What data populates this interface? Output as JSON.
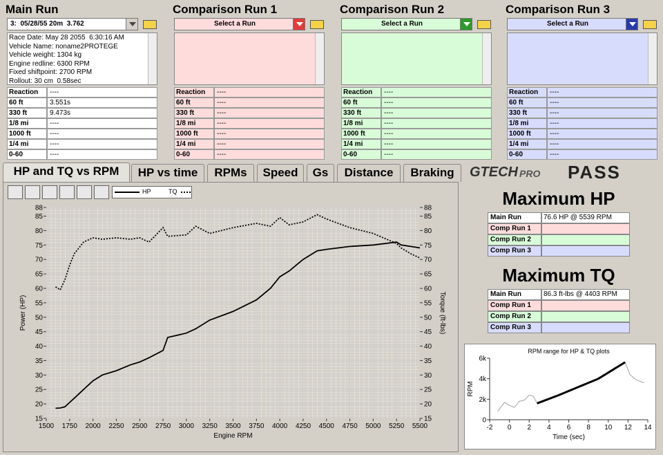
{
  "main_run": {
    "title": "Main Run",
    "select": "3:  05/28/55 20m  3.762",
    "info": [
      "Race Date: May 28 2055  6:30:16 AM",
      "Vehicle Name: noname2PROTEGE",
      "Vehicle weight: 1304 kg",
      "Engine redline: 6300 RPM",
      "Fixed shiftpoint: 2700 RPM",
      "Rollout: 30 cm  0.58sec"
    ],
    "results": [
      [
        "Reaction",
        "----"
      ],
      [
        "60 ft",
        "3.551s"
      ],
      [
        "330 ft",
        "9.473s"
      ],
      [
        "1/8 mi",
        "----"
      ],
      [
        "1000 ft",
        "----"
      ],
      [
        "1/4 mi",
        "----"
      ],
      [
        "0-60",
        "----"
      ]
    ]
  },
  "comparison_runs": [
    {
      "title": "Comparison Run 1",
      "select": "Select a Run",
      "results": [
        [
          "Reaction",
          "----"
        ],
        [
          "60 ft",
          "----"
        ],
        [
          "330 ft",
          "----"
        ],
        [
          "1/8 mi",
          "----"
        ],
        [
          "1000 ft",
          "----"
        ],
        [
          "1/4 mi",
          "----"
        ],
        [
          "0-60",
          "----"
        ]
      ]
    },
    {
      "title": "Comparison Run 2",
      "select": "Select a Run",
      "results": [
        [
          "Reaction",
          "----"
        ],
        [
          "60 ft",
          "----"
        ],
        [
          "330 ft",
          "----"
        ],
        [
          "1/8 mi",
          "----"
        ],
        [
          "1000 ft",
          "----"
        ],
        [
          "1/4 mi",
          "----"
        ],
        [
          "0-60",
          "----"
        ]
      ]
    },
    {
      "title": "Comparison Run 3",
      "select": "Select a Run",
      "results": [
        [
          "Reaction",
          "----"
        ],
        [
          "60 ft",
          "----"
        ],
        [
          "330 ft",
          "----"
        ],
        [
          "1/8 mi",
          "----"
        ],
        [
          "1000 ft",
          "----"
        ],
        [
          "1/4 mi",
          "----"
        ],
        [
          "0-60",
          "----"
        ]
      ]
    }
  ],
  "tabs": [
    "HP and TQ vs RPM",
    "HP vs time",
    "RPMs",
    "Speed",
    "Gs",
    "Distance",
    "Braking"
  ],
  "logo": {
    "brand": "GTECH",
    "sub": "PRO",
    "mode": "PASS"
  },
  "hp_tq_chart": {
    "type": "line",
    "x_label": "Engine RPM",
    "y_label": "Power (HP)",
    "y2_label": "Torque (ft-lbs)",
    "x": [
      1600,
      1650,
      1700,
      1750,
      1800,
      1900,
      2000,
      2100,
      2250,
      2400,
      2500,
      2600,
      2750,
      2800,
      3000,
      3100,
      3250,
      3500,
      3750,
      3900,
      4000,
      4100,
      4250,
      4400,
      4500,
      4750,
      5000,
      5250,
      5300,
      5400,
      5500
    ],
    "series": [
      {
        "name": "HP",
        "color": "#000000",
        "style": "solid",
        "values": [
          18.5,
          18.6,
          19,
          20.5,
          22,
          25,
          28,
          30,
          31.5,
          33.5,
          34.5,
          36,
          38.5,
          43,
          44.5,
          46,
          49,
          52,
          56,
          60,
          64,
          66,
          70,
          73,
          73.5,
          74.5,
          75,
          76,
          75,
          74.5,
          74
        ]
      },
      {
        "name": "TQ",
        "color": "#000000",
        "style": "dotted",
        "axis": "y2",
        "values": [
          60.5,
          59.5,
          63,
          68,
          72,
          76,
          77.5,
          77,
          77.5,
          77,
          77.5,
          76,
          81,
          78,
          78.5,
          81.5,
          79,
          81,
          82.5,
          81.5,
          84.5,
          82,
          83,
          85.5,
          84,
          81,
          79,
          75.5,
          74,
          72,
          70.5
        ]
      }
    ],
    "xlim": [
      1500,
      5500
    ],
    "xticks": [
      1500,
      1750,
      2000,
      2250,
      2500,
      2750,
      3000,
      3250,
      3500,
      3750,
      4000,
      4250,
      4500,
      4750,
      5000,
      5250,
      5500
    ],
    "ylim": [
      15,
      88
    ],
    "yticks": [
      15,
      20,
      25,
      30,
      35,
      40,
      45,
      50,
      55,
      60,
      65,
      70,
      75,
      80,
      85,
      88
    ],
    "y2lim": [
      15,
      88
    ],
    "y2ticks": [
      15,
      20,
      25,
      30,
      35,
      40,
      45,
      50,
      55,
      60,
      65,
      70,
      75,
      80,
      85,
      88
    ],
    "grid": true
  },
  "max_hp": {
    "title": "Maximum HP",
    "rows": [
      {
        "label": "Main Run",
        "value": "76.6 HP @ 5539 RPM"
      },
      {
        "label": "Comp Run 1"
      },
      {
        "label": "Comp Run 2"
      },
      {
        "label": "Comp Run 3"
      }
    ]
  },
  "max_tq": {
    "title": "Maximum TQ",
    "rows": [
      {
        "label": "Main Run",
        "value": "86.3 ft-lbs @ 4403 RPM"
      },
      {
        "label": "Comp Run 1"
      },
      {
        "label": "Comp Run 2"
      },
      {
        "label": "Comp Run 3"
      }
    ]
  },
  "rpm_chart": {
    "type": "line",
    "title": "RPM range for HP & TQ plots",
    "x_label": "Time (sec)",
    "y_label": "RPM",
    "x": [
      -1.2,
      -0.5,
      0,
      0.5,
      1,
      1.5,
      2,
      2.4,
      2.8,
      5,
      7,
      9,
      11.7,
      12.2,
      12.8,
      13.6
    ],
    "series": [
      {
        "color": "#a0a0a0",
        "width": 1,
        "values": [
          800,
          1700,
          1400,
          1200,
          1800,
          1900,
          2400,
          2300,
          1600,
          2400,
          3200,
          4000,
          5600,
          4400,
          3900,
          3600
        ]
      },
      {
        "color": "#000000",
        "width": 3,
        "values": [
          null,
          null,
          null,
          null,
          null,
          null,
          null,
          null,
          1600,
          2400,
          3200,
          4000,
          5600,
          null,
          null,
          null
        ]
      }
    ],
    "xlim": [
      -2,
      14
    ],
    "xticks": [
      -2,
      0,
      2,
      4,
      6,
      8,
      10,
      12,
      14
    ],
    "ylim": [
      0,
      6000
    ],
    "yticks": [
      0,
      {
        "value": 2000,
        "label": "2k"
      },
      {
        "value": 4000,
        "label": "4k"
      },
      {
        "value": 6000,
        "label": "6k"
      }
    ]
  }
}
